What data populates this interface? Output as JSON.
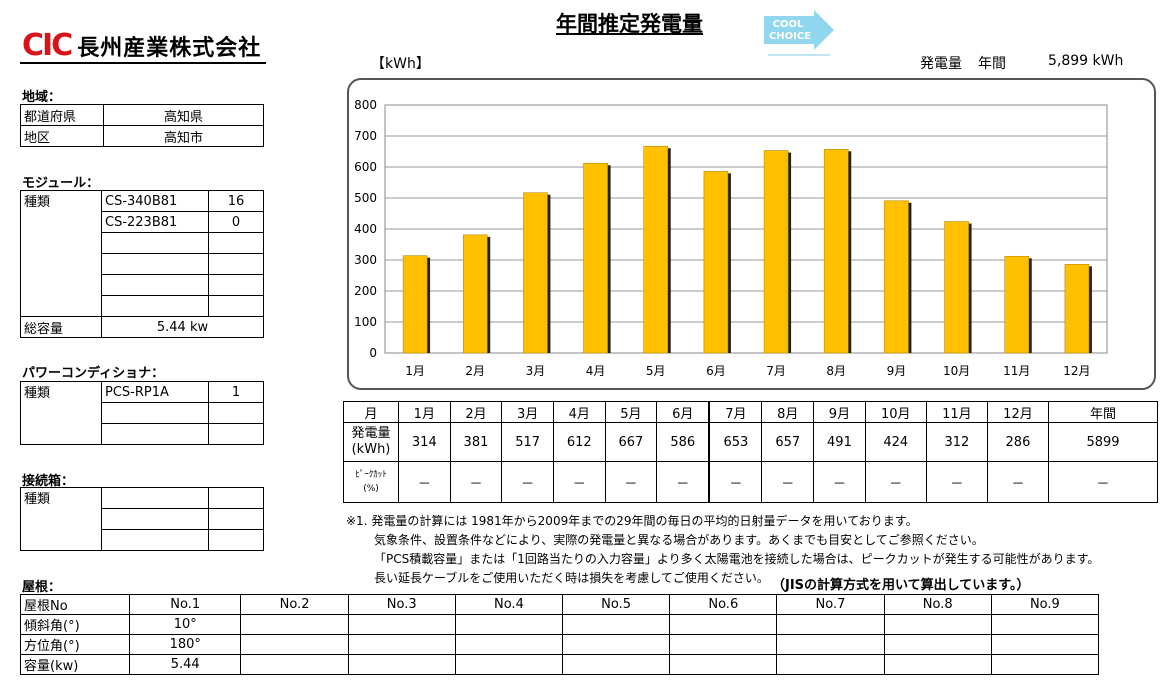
{
  "header": {
    "logo_mark": "CIC",
    "company": "長州産業株式会社",
    "title": "年間推定発電量",
    "badge_line1": "COOL",
    "badge_line2": "CHOICE",
    "unit_label": "【kWh】",
    "annual_label": "発電量",
    "annual_period": "年間",
    "annual_value": "5,899 kWh"
  },
  "region": {
    "heading": "地域：",
    "rows": [
      {
        "label": "都道府県",
        "value": "高知県"
      },
      {
        "label": "地区",
        "value": "高知市"
      }
    ]
  },
  "module": {
    "heading": "モジュール：",
    "type_label": "種類",
    "rows": [
      {
        "name": "CS-340B81",
        "qty": "16"
      },
      {
        "name": "CS-223B81",
        "qty": "0"
      },
      {
        "name": "",
        "qty": ""
      },
      {
        "name": "",
        "qty": ""
      },
      {
        "name": "",
        "qty": ""
      },
      {
        "name": "",
        "qty": ""
      }
    ],
    "total_label": "総容量",
    "total_value": "5.44 kw"
  },
  "power_conditioner": {
    "heading": "パワーコンディショナ：",
    "type_label": "種類",
    "rows": [
      {
        "name": "PCS-RP1A",
        "qty": "1"
      },
      {
        "name": "",
        "qty": ""
      },
      {
        "name": "",
        "qty": ""
      }
    ]
  },
  "junction_box": {
    "heading": "接続箱：",
    "type_label": "種類"
  },
  "chart_data": {
    "type": "bar",
    "categories": [
      "1月",
      "2月",
      "3月",
      "4月",
      "5月",
      "6月",
      "7月",
      "8月",
      "9月",
      "10月",
      "11月",
      "12月"
    ],
    "values": [
      314,
      381,
      517,
      612,
      667,
      586,
      653,
      657,
      491,
      424,
      312,
      286
    ],
    "ylabel": "【kWh】",
    "ylim": [
      0,
      800
    ],
    "yticks": [
      0,
      100,
      200,
      300,
      400,
      500,
      600,
      700,
      800
    ],
    "grid": true,
    "bar_color": "#ffc000"
  },
  "monthly_table": {
    "head_label": "月",
    "months": [
      "1月",
      "2月",
      "3月",
      "4月",
      "5月",
      "6月",
      "7月",
      "8月",
      "9月",
      "10月",
      "11月",
      "12月"
    ],
    "annual_label": "年間",
    "gen_label_1": "発電量",
    "gen_label_2": "(kWh)",
    "gen_values": [
      "314",
      "381",
      "517",
      "612",
      "667",
      "586",
      "653",
      "657",
      "491",
      "424",
      "312",
      "286"
    ],
    "gen_annual": "5899",
    "peak_label_1": "ﾋﾟｰｸｶｯﾄ",
    "peak_label_2": "(%)",
    "peak_values": [
      "－",
      "－",
      "－",
      "－",
      "－",
      "－",
      "－",
      "－",
      "－",
      "－",
      "－",
      "－"
    ],
    "peak_annual": "－"
  },
  "notes": {
    "line1": "※1. 発電量の計算には 1981年から2009年までの29年間の毎日の平均的日射量データを用いております。",
    "line2": "気象条件、設置条件などにより、実際の発電量と異なる場合があります。あくまでも目安としてご参照ください。",
    "line3": "「PCS積載容量」または「1回路当たりの入力容量」より多く太陽電池を接続した場合は、ピークカットが発生する可能性があります。",
    "line4": "長い延長ケーブルをご使用いただく時は損失を考慮してご使用ください。",
    "jis": "（JISの計算方式を用いて算出しています。）"
  },
  "roof": {
    "heading": "屋根：",
    "header_label": "屋根No",
    "columns": [
      "No.1",
      "No.2",
      "No.3",
      "No.4",
      "No.5",
      "No.6",
      "No.7",
      "No.8",
      "No.9"
    ],
    "rows": [
      {
        "label": "傾斜角(°)",
        "values": [
          "10°",
          "",
          "",
          "",
          "",
          "",
          "",
          "",
          ""
        ]
      },
      {
        "label": "方位角(°)",
        "values": [
          "180°",
          "",
          "",
          "",
          "",
          "",
          "",
          "",
          ""
        ]
      },
      {
        "label": "容量(kw)",
        "values": [
          "5.44",
          "",
          "",
          "",
          "",
          "",
          "",
          "",
          ""
        ]
      }
    ]
  }
}
